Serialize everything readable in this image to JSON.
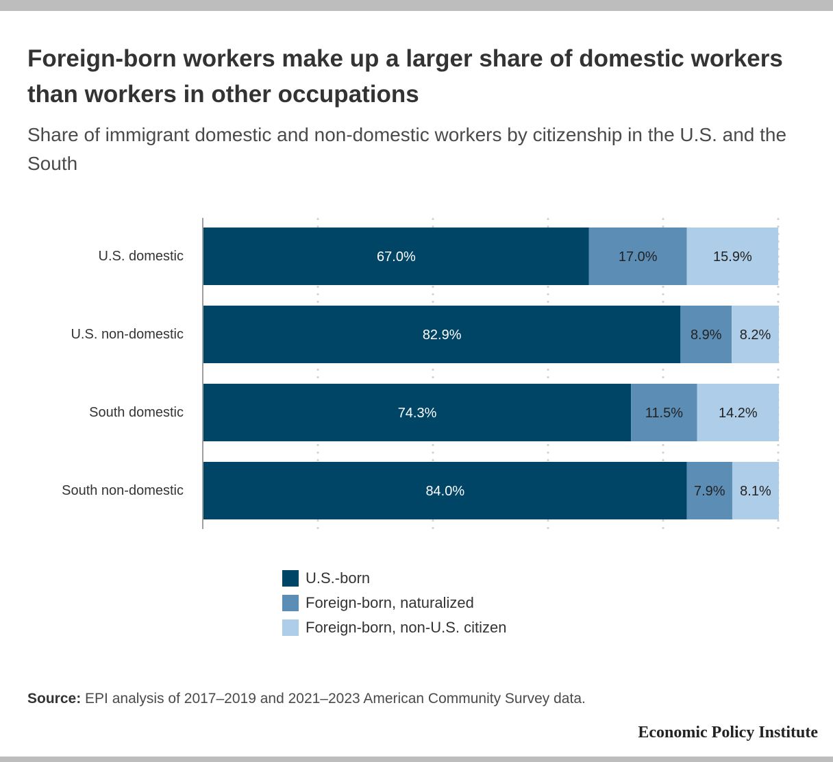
{
  "title": "Foreign-born workers make up a larger share of domestic workers than workers in other occupations",
  "subtitle": "Share of immigrant domestic and non-domestic workers by citizenship in the U.S. and the South",
  "source_label": "Source:",
  "source_text": "EPI analysis of 2017–2019 and 2021–2023 American Community Survey data.",
  "brand": "Economic Policy Institute",
  "colors": {
    "us_born": "#004466",
    "naturalized": "#5b8db5",
    "non_citizen": "#aecde9"
  },
  "chart_data": {
    "type": "bar",
    "orientation": "horizontal",
    "stacked": true,
    "title": "Foreign-born workers make up a larger share of domestic workers than workers in other occupations",
    "subtitle": "Share of immigrant domestic and non-domestic workers by citizenship in the U.S. and the South",
    "categories": [
      "U.S. domestic",
      "U.S. non-domestic",
      "South domestic",
      "South non-domestic"
    ],
    "series": [
      {
        "name": "U.S.-born",
        "color": "#004466",
        "values": [
          67.0,
          82.9,
          74.3,
          84.0
        ],
        "labels": [
          "67.0%",
          "82.9%",
          "74.3%",
          "84.0%"
        ]
      },
      {
        "name": "Foreign-born, naturalized",
        "color": "#5b8db5",
        "values": [
          17.0,
          8.9,
          11.5,
          7.9
        ],
        "labels": [
          "17.0%",
          "8.9%",
          "11.5%",
          "7.9%"
        ]
      },
      {
        "name": "Foreign-born, non-U.S. citizen",
        "color": "#aecde9",
        "values": [
          15.9,
          8.2,
          14.2,
          8.1
        ],
        "labels": [
          "15.9%",
          "8.2%",
          "14.2%",
          "8.1%"
        ]
      }
    ],
    "xlim": [
      0,
      100
    ],
    "grid": true,
    "legend_position": "bottom"
  }
}
